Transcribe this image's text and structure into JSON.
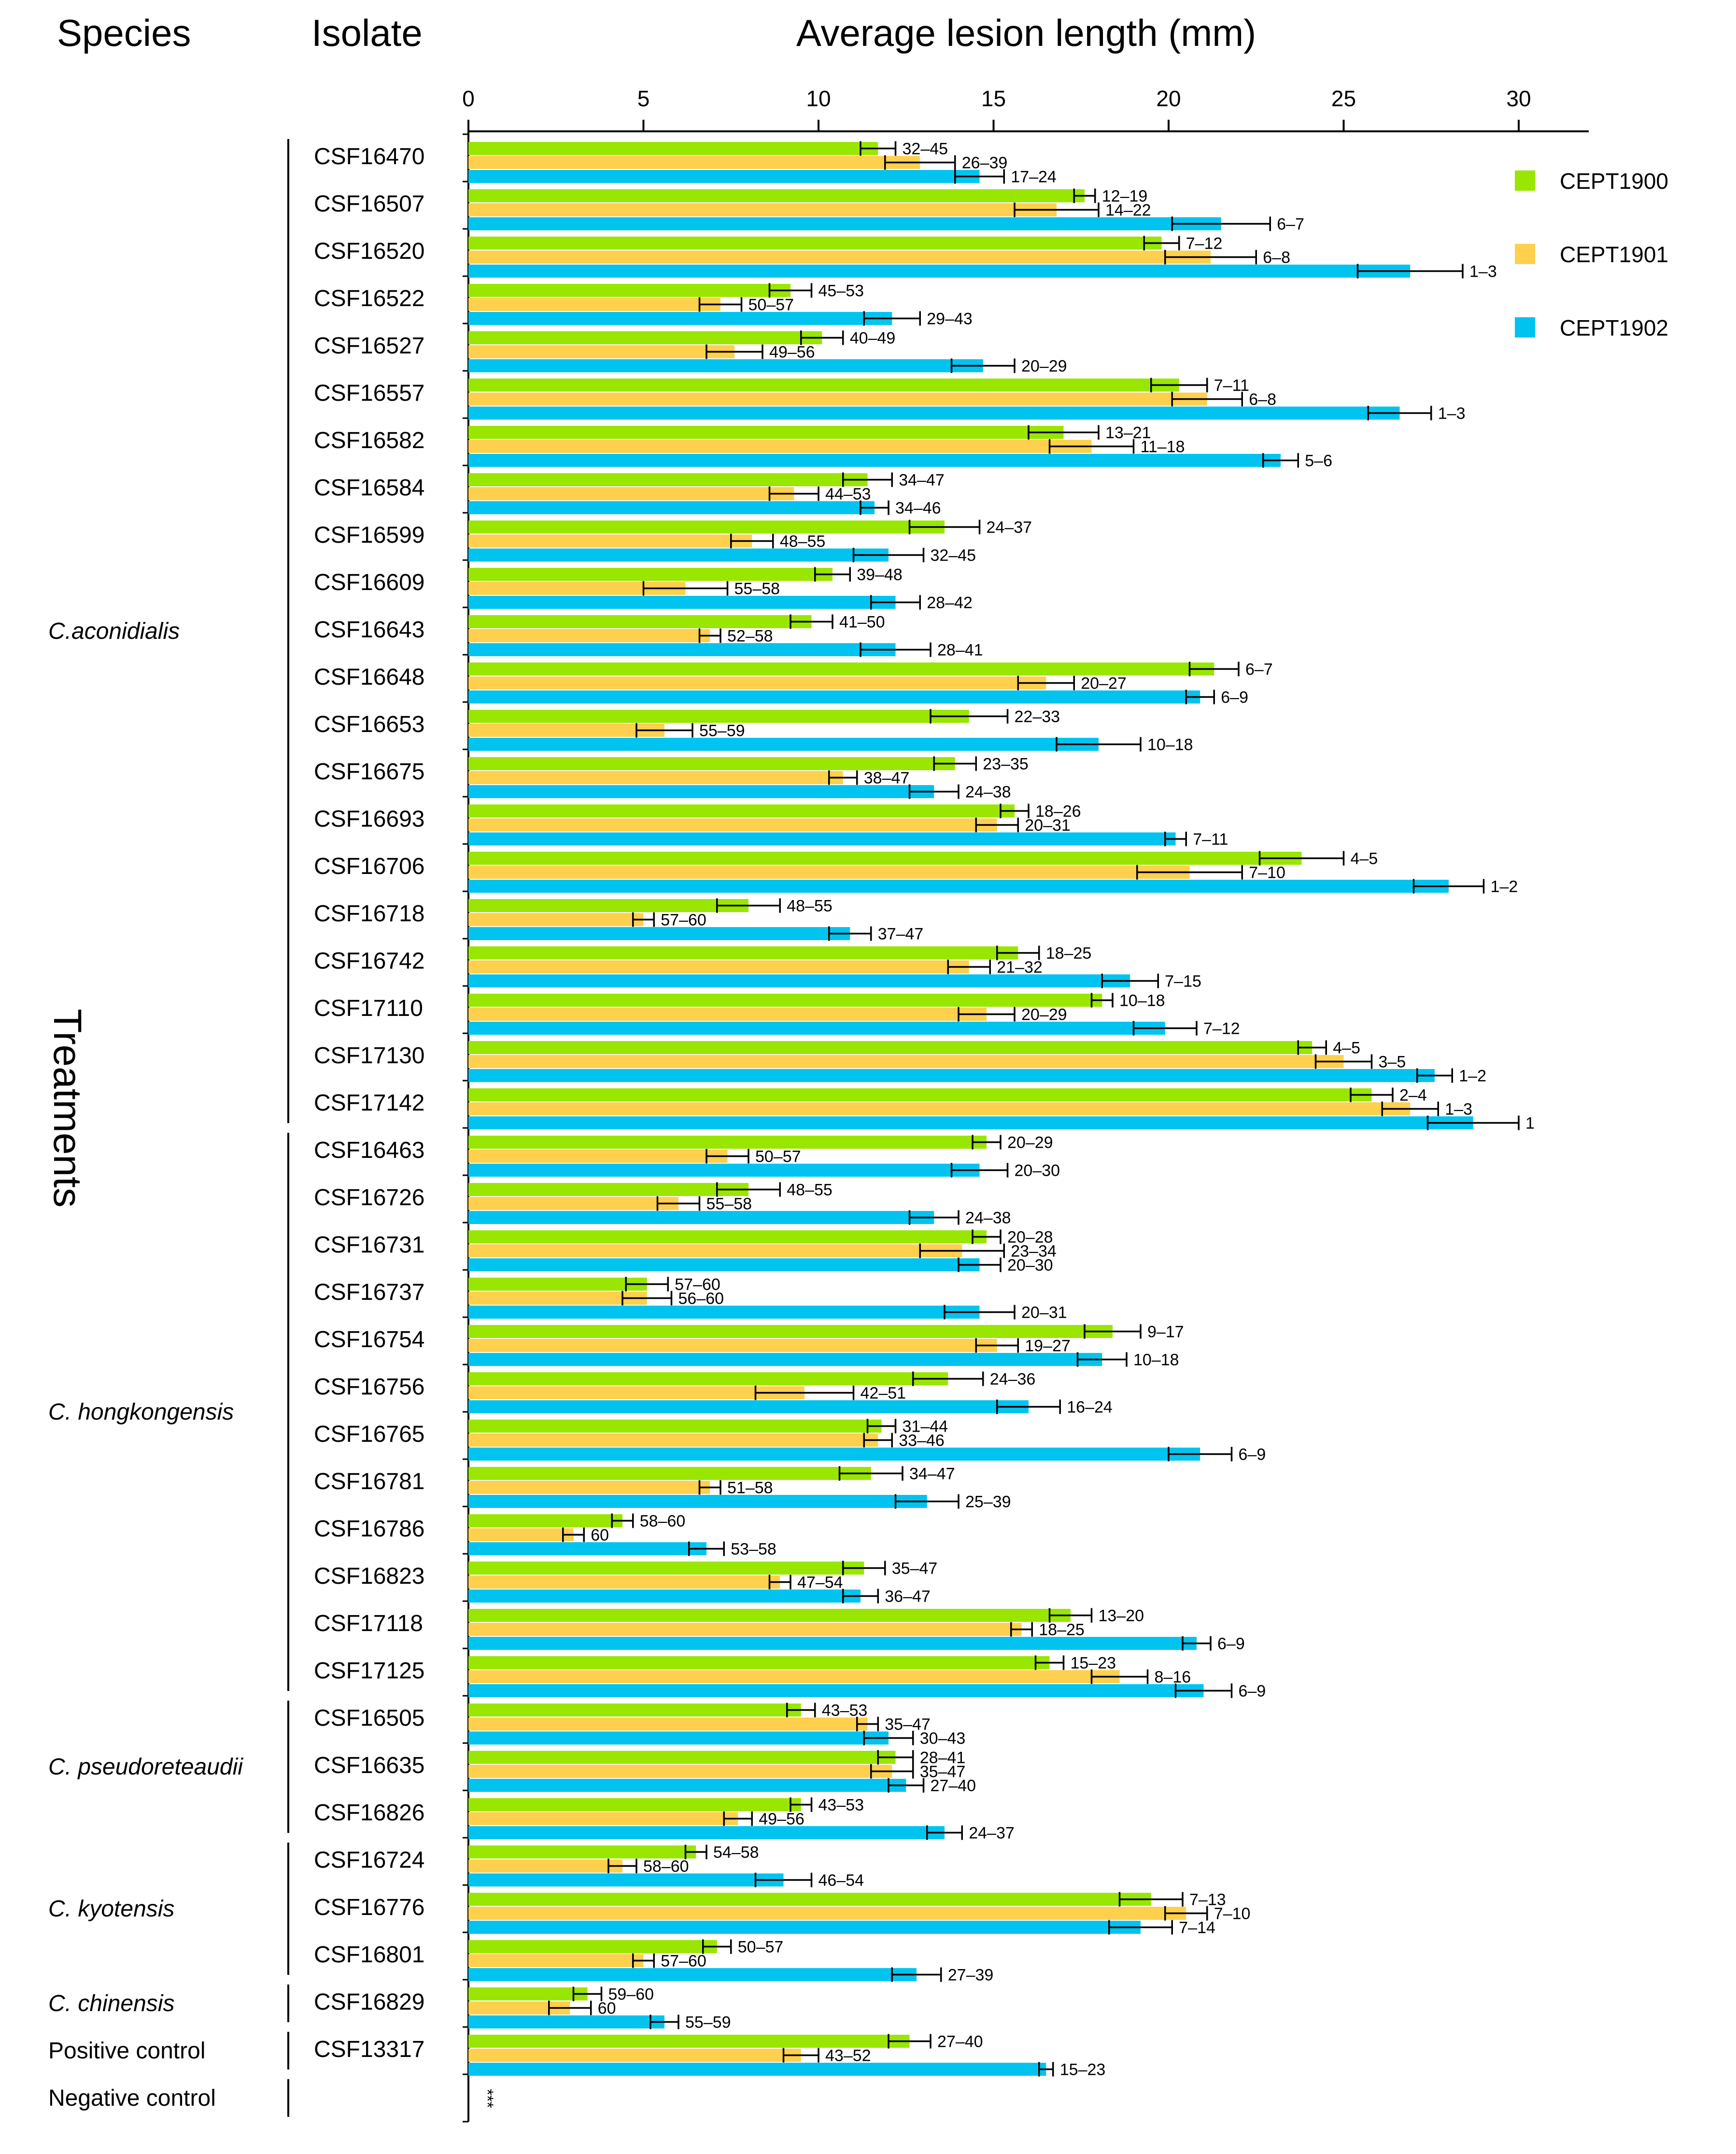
{
  "headers": {
    "species": "Species",
    "isolate": "Isolate"
  },
  "colors": {
    "CEPT1900": "#99e600",
    "CEPT1901": "#ffd04d",
    "CEPT1902": "#00c4ef",
    "axis": "#000000"
  },
  "chart_data": {
    "type": "bar",
    "orientation": "horizontal",
    "title": "Average lesion length (mm)",
    "xlabel": "Average lesion length (mm)",
    "ylabel": "Treatments",
    "xlim": [
      0,
      32
    ],
    "xticks": [
      0,
      5,
      10,
      15,
      20,
      25,
      30
    ],
    "legend": [
      "CEPT1900",
      "CEPT1901",
      "CEPT1902"
    ],
    "legend_position": "top-right",
    "categories": [
      "CSF16470",
      "CSF16507",
      "CSF16520",
      "CSF16522",
      "CSF16527",
      "CSF16557",
      "CSF16582",
      "CSF16584",
      "CSF16599",
      "CSF16609",
      "CSF16643",
      "CSF16648",
      "CSF16653",
      "CSF16675",
      "CSF16693",
      "CSF16706",
      "CSF16718",
      "CSF16742",
      "CSF17110",
      "CSF17130",
      "CSF17142",
      "CSF16463",
      "CSF16726",
      "CSF16731",
      "CSF16737",
      "CSF16754",
      "CSF16756",
      "CSF16765",
      "CSF16781",
      "CSF16786",
      "CSF16823",
      "CSF17118",
      "CSF17125",
      "CSF16505",
      "CSF16635",
      "CSF16826",
      "CSF16724",
      "CSF16776",
      "CSF16801",
      "CSF16829",
      "CSF13317",
      ""
    ],
    "series": [
      {
        "name": "CEPT1900",
        "values": [
          11.7,
          17.6,
          19.8,
          9.2,
          10.1,
          20.3,
          17.0,
          11.4,
          13.6,
          10.4,
          9.8,
          21.3,
          14.3,
          13.9,
          15.6,
          23.8,
          8.0,
          15.7,
          18.1,
          24.1,
          25.8,
          14.8,
          8.0,
          14.8,
          5.1,
          18.4,
          13.7,
          11.8,
          11.5,
          4.4,
          11.3,
          17.2,
          16.6,
          9.5,
          12.2,
          9.5,
          6.5,
          19.5,
          7.1,
          3.4,
          12.6,
          0
        ],
        "errors": [
          0.5,
          0.3,
          0.5,
          0.6,
          0.6,
          0.8,
          1.0,
          0.7,
          1.0,
          0.5,
          0.6,
          0.7,
          1.1,
          0.6,
          0.4,
          1.2,
          0.9,
          0.6,
          0.3,
          0.4,
          0.6,
          0.4,
          0.9,
          0.4,
          0.6,
          0.8,
          1.0,
          0.4,
          0.9,
          0.3,
          0.6,
          0.6,
          0.4,
          0.4,
          0.5,
          0.3,
          0.3,
          0.9,
          0.4,
          0.4,
          0.6,
          0
        ],
        "rank_labels": [
          "32–45",
          "12–19",
          "7–12",
          "45–53",
          "40–49",
          "7–11",
          "13–21",
          "34–47",
          "24–37",
          "39–48",
          "41–50",
          "6–7",
          "22–33",
          "23–35",
          "18–26",
          "4–5",
          "48–55",
          "18–25",
          "10–18",
          "4–5",
          "2–4",
          "20–29",
          "48–55",
          "20–28",
          "57–60",
          "9–17",
          "24–36",
          "31–44",
          "34–47",
          "58–60",
          "35–47",
          "13–20",
          "15–23",
          "43–53",
          "28–41",
          "43–53",
          "54–58",
          "7–13",
          "50–57",
          "59–60",
          "27–40",
          ""
        ]
      },
      {
        "name": "CEPT1901",
        "values": [
          12.9,
          16.8,
          21.2,
          7.2,
          7.6,
          21.1,
          17.8,
          9.3,
          8.1,
          6.2,
          6.9,
          16.5,
          5.6,
          10.7,
          15.1,
          20.6,
          5.0,
          14.3,
          14.8,
          25.0,
          26.9,
          7.4,
          6.0,
          14.1,
          5.1,
          15.1,
          9.6,
          11.7,
          6.9,
          3.0,
          8.9,
          15.8,
          18.6,
          11.4,
          12.1,
          7.7,
          4.4,
          20.5,
          5.0,
          2.9,
          9.5,
          0
        ],
        "errors": [
          1.0,
          1.2,
          1.3,
          0.6,
          0.8,
          1.0,
          1.2,
          0.7,
          0.6,
          1.2,
          0.3,
          0.8,
          0.8,
          0.4,
          0.6,
          1.5,
          0.3,
          0.6,
          0.8,
          0.8,
          0.8,
          0.6,
          0.6,
          1.2,
          0.7,
          0.6,
          1.4,
          0.4,
          0.3,
          0.3,
          0.3,
          0.3,
          0.8,
          0.3,
          0.6,
          0.4,
          0.4,
          0.6,
          0.3,
          0.6,
          0.5,
          0
        ],
        "rank_labels": [
          "26–39",
          "14–22",
          "6–8",
          "50–57",
          "49–56",
          "6–8",
          "11–18",
          "44–53",
          "48–55",
          "55–58",
          "52–58",
          "20–27",
          "55–59",
          "38–47",
          "20–31",
          "7–10",
          "57–60",
          "21–32",
          "20–29",
          "3–5",
          "1–3",
          "50–57",
          "55–58",
          "23–34",
          "56–60",
          "19–27",
          "42–51",
          "33–46",
          "51–58",
          "60",
          "47–54",
          "18–25",
          "8–16",
          "35–47",
          "35–47",
          "49–56",
          "58–60",
          "7–10",
          "57–60",
          "60",
          "43–52",
          ""
        ]
      },
      {
        "name": "CEPT1902",
        "values": [
          14.6,
          21.5,
          26.9,
          12.1,
          14.7,
          26.6,
          23.2,
          11.6,
          12.0,
          12.2,
          12.2,
          20.9,
          18.0,
          13.3,
          20.2,
          28.0,
          10.9,
          18.9,
          19.9,
          27.6,
          28.7,
          14.6,
          13.3,
          14.6,
          14.6,
          18.1,
          16.0,
          20.9,
          13.1,
          6.8,
          11.2,
          20.8,
          21.0,
          12.0,
          12.5,
          13.6,
          9.0,
          19.2,
          12.8,
          5.6,
          16.5,
          0
        ],
        "errors": [
          0.7,
          1.4,
          1.5,
          0.8,
          0.9,
          0.9,
          0.5,
          0.4,
          1.0,
          0.7,
          1.0,
          0.4,
          1.2,
          0.7,
          0.3,
          1.0,
          0.6,
          0.8,
          0.9,
          0.5,
          1.3,
          0.8,
          0.7,
          0.6,
          1.0,
          0.7,
          0.9,
          0.9,
          0.9,
          0.5,
          0.5,
          0.4,
          0.8,
          0.7,
          0.5,
          0.5,
          0.8,
          0.9,
          0.7,
          0.4,
          0.2,
          0
        ],
        "rank_labels": [
          "17–24",
          "6–7",
          "1–3",
          "29–43",
          "20–29",
          "1–3",
          "5–6",
          "34–46",
          "32–45",
          "28–42",
          "28–41",
          "6–9",
          "10–18",
          "24–38",
          "7–11",
          "1–2",
          "37–47",
          "7–15",
          "7–12",
          "1–2",
          "1",
          "20–30",
          "24–38",
          "20–30",
          "20–31",
          "10–18",
          "16–24",
          "6–9",
          "25–39",
          "53–58",
          "36–47",
          "6–9",
          "6–9",
          "30–43",
          "27–40",
          "24–37",
          "46–54",
          "7–14",
          "27–39",
          "55–59",
          "15–23",
          ""
        ]
      }
    ],
    "groups": [
      {
        "label": "C.aconidialis",
        "from": 0,
        "to": 20
      },
      {
        "label": "C. hongkongensis",
        "from": 21,
        "to": 32
      },
      {
        "label": "C. pseudoreteaudii",
        "from": 33,
        "to": 35
      },
      {
        "label": "C. kyotensis",
        "from": 36,
        "to": 38
      },
      {
        "label": "C. chinensis",
        "from": 39,
        "to": 39
      }
    ],
    "controls": [
      {
        "label": "Positive control",
        "row": 40
      },
      {
        "label": "Negative control",
        "row": 41
      }
    ],
    "zero_marker": "***"
  }
}
